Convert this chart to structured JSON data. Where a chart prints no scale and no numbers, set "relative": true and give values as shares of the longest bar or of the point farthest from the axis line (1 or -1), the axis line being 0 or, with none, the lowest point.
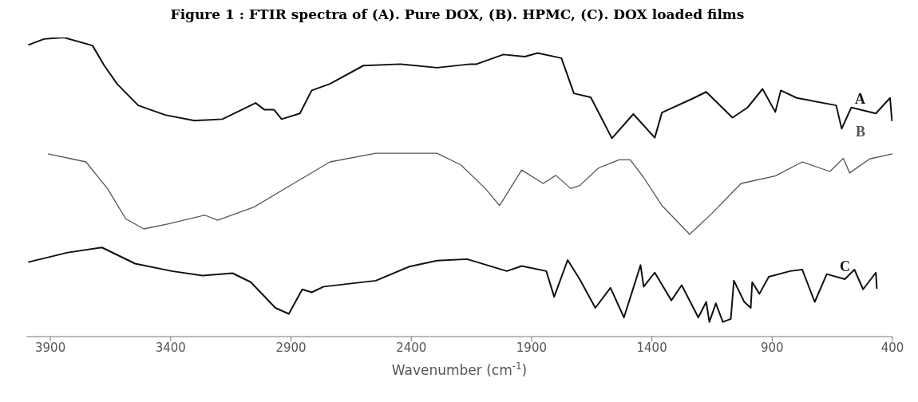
{
  "chart_data": {
    "type": "line",
    "title": "Figure 1 : FTIR spectra of (A). Pure DOX, (B). HPMC, (C). DOX loaded films",
    "xlabel": "Wavenumber (cm$^{-1}$)",
    "relative": true,
    "xlim": [
      4000,
      400
    ],
    "xticks": [
      3900,
      3400,
      2900,
      2400,
      1900,
      1400,
      900,
      400
    ],
    "grid": false,
    "legend": false,
    "series": [
      {
        "name": "A",
        "color": "#111111",
        "x": [
          3992,
          3926,
          3844,
          3725,
          3676,
          3623,
          3535,
          3423,
          3301,
          3185,
          3047,
          3011,
          2971,
          2939,
          2863,
          2814,
          2738,
          2599,
          2445,
          2293,
          2155,
          2129,
          2017,
          1928,
          1875,
          1776,
          1724,
          1654,
          1566,
          1477,
          1388,
          1358,
          1230,
          1174,
          1065,
          1002,
          940,
          887,
          864,
          798,
          634,
          611,
          571,
          469,
          410,
          402
        ],
        "values": [
          0.975,
          0.995,
          1.0,
          0.973,
          0.906,
          0.845,
          0.773,
          0.741,
          0.722,
          0.727,
          0.781,
          0.759,
          0.759,
          0.727,
          0.746,
          0.823,
          0.845,
          0.906,
          0.911,
          0.899,
          0.911,
          0.911,
          0.943,
          0.936,
          0.948,
          0.931,
          0.813,
          0.8,
          0.663,
          0.744,
          0.665,
          0.749,
          0.796,
          0.818,
          0.732,
          0.766,
          0.828,
          0.751,
          0.823,
          0.798,
          0.773,
          0.695,
          0.766,
          0.746,
          0.798,
          0.72
        ]
      },
      {
        "name": "B",
        "color": "#555555",
        "x": [
          3910,
          3752,
          3663,
          3587,
          3512,
          3409,
          3258,
          3205,
          3054,
          2889,
          2738,
          2547,
          2293,
          2194,
          2092,
          2033,
          1941,
          1852,
          1799,
          1737,
          1700,
          1621,
          1536,
          1490,
          1434,
          1358,
          1243,
          1154,
          1029,
          887,
          775,
          660,
          604,
          578,
          495,
          400
        ],
        "values": [
          0.611,
          0.584,
          0.495,
          0.394,
          0.36,
          0.377,
          0.406,
          0.389,
          0.433,
          0.512,
          0.584,
          0.613,
          0.613,
          0.574,
          0.495,
          0.438,
          0.557,
          0.512,
          0.539,
          0.495,
          0.505,
          0.564,
          0.591,
          0.591,
          0.532,
          0.438,
          0.342,
          0.409,
          0.512,
          0.537,
          0.584,
          0.552,
          0.596,
          0.547,
          0.594,
          0.611
        ]
      },
      {
        "name": "C",
        "color": "#111111",
        "x": [
          3992,
          3828,
          3686,
          3548,
          3396,
          3268,
          3143,
          3067,
          2965,
          2909,
          2853,
          2814,
          2764,
          2547,
          2408,
          2293,
          2168,
          2003,
          1941,
          1839,
          1806,
          1750,
          1700,
          1635,
          1572,
          1516,
          1447,
          1434,
          1388,
          1319,
          1276,
          1207,
          1174,
          1161,
          1134,
          1105,
          1072,
          1059,
          1016,
          989,
          983,
          953,
          914,
          825,
          775,
          723,
          673,
          598,
          558,
          522,
          469,
          465
        ],
        "values": [
          0.249,
          0.281,
          0.298,
          0.244,
          0.219,
          0.204,
          0.212,
          0.182,
          0.096,
          0.076,
          0.158,
          0.148,
          0.167,
          0.187,
          0.234,
          0.254,
          0.259,
          0.219,
          0.236,
          0.219,
          0.133,
          0.256,
          0.192,
          0.096,
          0.163,
          0.064,
          0.239,
          0.167,
          0.214,
          0.121,
          0.172,
          0.064,
          0.116,
          0.049,
          0.111,
          0.049,
          0.059,
          0.187,
          0.116,
          0.096,
          0.182,
          0.143,
          0.2,
          0.219,
          0.224,
          0.116,
          0.209,
          0.192,
          0.224,
          0.158,
          0.214,
          0.16
        ]
      }
    ]
  }
}
